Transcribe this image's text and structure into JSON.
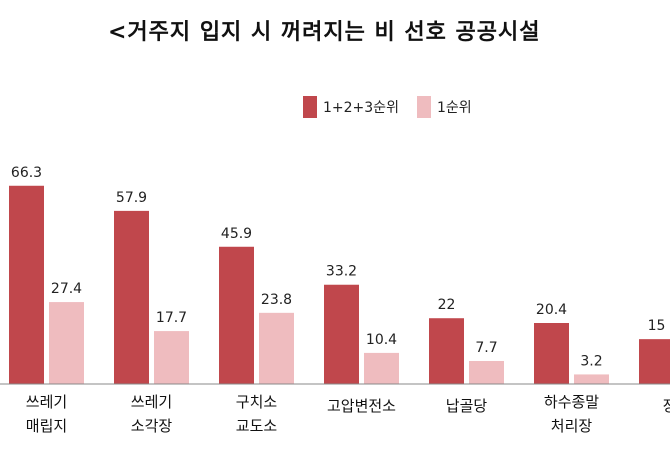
{
  "chart_data": {
    "type": "bar",
    "title": "<거주지 입지 시 꺼려지는 비 선호 공공시설",
    "categories": [
      [
        "쓰레기",
        "매립지"
      ],
      [
        "쓰레기",
        "소각장"
      ],
      [
        "구치소",
        "교도소"
      ],
      [
        "고압변전소"
      ],
      [
        "납골당"
      ],
      [
        "하수종말",
        "처리장"
      ],
      [
        "장례"
      ]
    ],
    "series": [
      {
        "name": "1+2+3순위",
        "color": "#c0474c",
        "values": [
          66.3,
          57.9,
          45.9,
          33.2,
          22,
          20.4,
          15
        ]
      },
      {
        "name": "1순위",
        "color": "#efbcbf",
        "values": [
          27.4,
          17.7,
          23.8,
          10.4,
          7.7,
          3.2,
          null
        ]
      }
    ],
    "legend_position": "top-center",
    "grid": false
  }
}
